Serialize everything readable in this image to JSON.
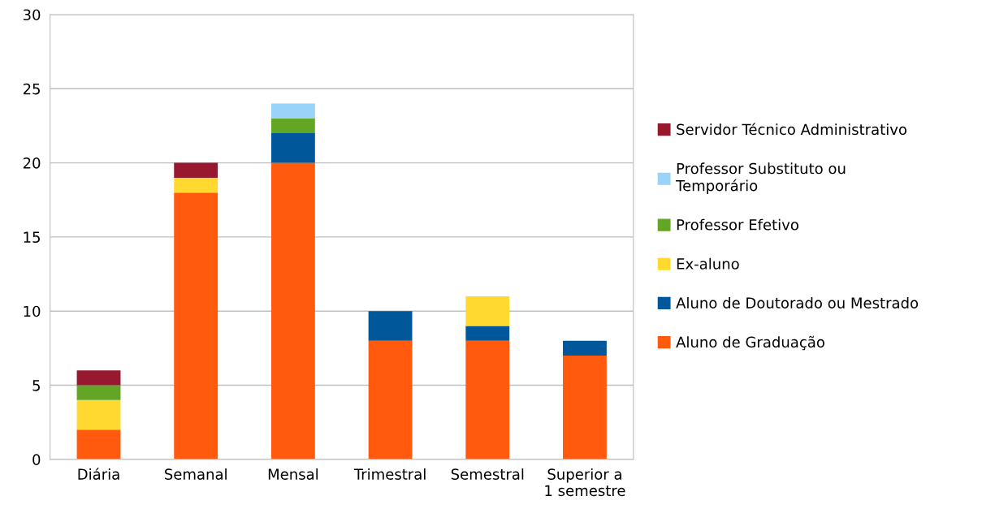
{
  "chart_data": {
    "type": "bar",
    "stacked": true,
    "categories": [
      "Diária",
      "Semanal",
      "Mensal",
      "Trimestral",
      "Semestral",
      "Superior a\n1 semestre"
    ],
    "series": [
      {
        "name": "Aluno de Graduação",
        "color": "#ff5a0e",
        "values": [
          2,
          18,
          20,
          8,
          8,
          7
        ]
      },
      {
        "name": "Aluno de Doutorado ou Mestrado",
        "color": "#00589a",
        "values": [
          0,
          0,
          2,
          2,
          1,
          1
        ]
      },
      {
        "name": "Ex-aluno",
        "color": "#ffd92f",
        "values": [
          2,
          1,
          0,
          0,
          2,
          0
        ]
      },
      {
        "name": "Professor Efetivo",
        "color": "#63a626",
        "values": [
          1,
          0,
          1,
          0,
          0,
          0
        ]
      },
      {
        "name": "Professor Substituto ou\nTemporário",
        "color": "#99d3f9",
        "values": [
          0,
          0,
          1,
          0,
          0,
          0
        ]
      },
      {
        "name": "Servidor Técnico Administrativo",
        "color": "#97182f",
        "values": [
          1,
          1,
          0,
          0,
          0,
          0
        ]
      }
    ],
    "ylim": [
      0,
      30
    ],
    "yticks": [
      0,
      5,
      10,
      15,
      20,
      25,
      30
    ],
    "grid": "y",
    "legend": "right"
  }
}
